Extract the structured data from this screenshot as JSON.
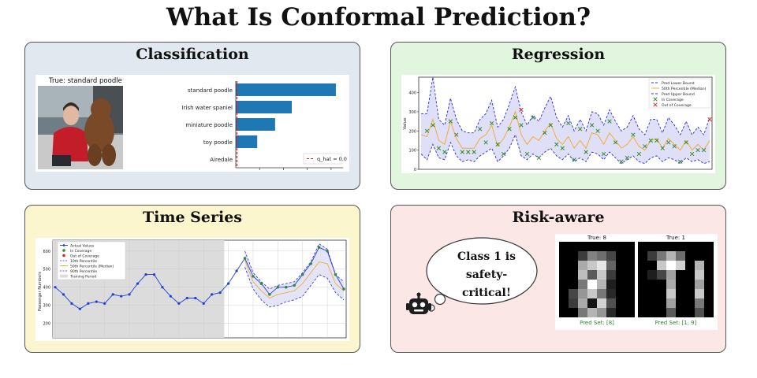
{
  "title": "What Is Conformal Prediction?",
  "panels": {
    "classification": {
      "title": "Classification",
      "photo_caption": "True: standard poodle",
      "chart_data": {
        "type": "bar",
        "orientation": "horizontal",
        "categories": [
          "standard poodle",
          "Irish water spaniel",
          "miniature poodle",
          "toy poodle",
          "Airedale"
        ],
        "values": [
          0.84,
          0.47,
          0.33,
          0.18,
          0.0
        ],
        "threshold": 0.01,
        "legend": [
          "q_hat = 0.01"
        ],
        "legend_position": "lower-right",
        "xlim": [
          0,
          0.9
        ]
      }
    },
    "regression": {
      "title": "Regression",
      "chart_data": {
        "type": "line",
        "ylabel": "Value",
        "ylim": [
          0,
          480
        ],
        "yticks": [
          0,
          100,
          200,
          300,
          400
        ],
        "x": [
          0,
          1,
          2,
          3,
          4,
          5,
          6,
          7,
          8,
          9,
          10,
          11,
          12,
          13,
          14,
          15,
          16,
          17,
          18,
          19,
          20,
          21,
          22,
          23,
          24,
          25,
          26,
          27,
          28,
          29,
          30,
          31,
          32,
          33,
          34,
          35,
          36,
          37,
          38,
          39,
          40,
          41,
          42,
          43,
          44,
          45,
          46,
          47,
          48,
          49
        ],
        "series": [
          {
            "name": "Pred Lower Bound",
            "values": [
              80,
              50,
              130,
              60,
              50,
              140,
              70,
              40,
              50,
              40,
              70,
              90,
              110,
              40,
              70,
              110,
              180,
              70,
              50,
              80,
              60,
              90,
              110,
              70,
              50,
              80,
              40,
              60,
              40,
              90,
              80,
              50,
              90,
              60,
              30,
              50,
              70,
              40,
              30,
              60,
              70,
              40,
              60,
              50,
              30,
              60,
              40,
              50,
              30,
              40
            ]
          },
          {
            "name": "50th Percentile (Median)",
            "values": [
              180,
              170,
              260,
              150,
              130,
              250,
              160,
              110,
              110,
              110,
              160,
              180,
              230,
              120,
              160,
              220,
              300,
              180,
              130,
              170,
              150,
              200,
              240,
              160,
              130,
              170,
              110,
              150,
              110,
              190,
              180,
              130,
              190,
              150,
              110,
              130,
              170,
              120,
              100,
              150,
              160,
              110,
              160,
              130,
              100,
              150,
              100,
              130,
              100,
              150
            ]
          },
          {
            "name": "Pred Upper Bound",
            "values": [
              290,
              290,
              480,
              260,
              230,
              370,
              260,
              200,
              190,
              190,
              260,
              290,
              360,
              220,
              260,
              340,
              430,
              300,
              230,
              280,
              250,
              320,
              380,
              270,
              220,
              280,
              200,
              260,
              200,
              300,
              290,
              230,
              310,
              250,
              200,
              220,
              280,
              210,
              180,
              260,
              260,
              190,
              270,
              230,
              180,
              250,
              180,
              220,
              180,
              270
            ]
          },
          {
            "name": "In Coverage",
            "values": [
              null,
              200,
              230,
              110,
              90,
              250,
              180,
              90,
              90,
              90,
              210,
              140,
              240,
              130,
              80,
              210,
              270,
              230,
              80,
              270,
              60,
              190,
              230,
              130,
              110,
              240,
              50,
              210,
              90,
              230,
              200,
              80,
              250,
              140,
              40,
              60,
              180,
              80,
              120,
              150,
              150,
              110,
              140,
              120,
              40,
              140,
              80,
              100,
              100,
              null
            ]
          },
          {
            "name": "Out of Coverage",
            "values": [
              null,
              null,
              null,
              null,
              null,
              null,
              null,
              null,
              null,
              null,
              null,
              null,
              null,
              null,
              null,
              null,
              null,
              310,
              null,
              null,
              null,
              null,
              null,
              null,
              null,
              null,
              null,
              null,
              null,
              null,
              null,
              null,
              null,
              null,
              null,
              null,
              null,
              null,
              null,
              null,
              null,
              null,
              null,
              null,
              null,
              null,
              null,
              null,
              null,
              260
            ]
          }
        ],
        "legend": [
          "Pred Lower Bound",
          "50th Percentile (Median)",
          "Pred Upper Bound",
          "In Coverage",
          "Out of Coverage"
        ],
        "legend_position": "top-right",
        "colors": {
          "bounds": "#2b2bd6",
          "median": "#f5a623",
          "in": "#2e8b2e",
          "out": "#d62728",
          "band": "#dfe0f7"
        }
      }
    },
    "timeseries": {
      "title": "Time Series",
      "chart_data": {
        "type": "line",
        "ylabel": "Passenger Numbers",
        "ylim": [
          120,
          660
        ],
        "yticks": [
          200,
          300,
          400,
          500,
          600
        ],
        "x": [
          0,
          1,
          2,
          3,
          4,
          5,
          6,
          7,
          8,
          9,
          10,
          11,
          12,
          13,
          14,
          15,
          16,
          17,
          18,
          19,
          20,
          21,
          22,
          23,
          24,
          25,
          26,
          27,
          28,
          29,
          30,
          31,
          32,
          33,
          34,
          35
        ],
        "training_period_end": 20,
        "series": [
          {
            "name": "Actual Values",
            "values": [
              400,
              360,
              310,
              280,
              310,
              320,
              310,
              360,
              350,
              360,
              420,
              470,
              470,
              400,
              350,
              310,
              340,
              340,
              310,
              360,
              370,
              420,
              490,
              560,
              460,
              420,
              360,
              400,
              400,
              410,
              470,
              530,
              620,
              600,
              470,
              390
            ]
          },
          {
            "name": "10th Percentile",
            "values": [
              null,
              null,
              null,
              null,
              null,
              null,
              null,
              null,
              null,
              null,
              null,
              null,
              null,
              null,
              null,
              null,
              null,
              null,
              null,
              null,
              null,
              null,
              null,
              510,
              390,
              330,
              290,
              300,
              320,
              330,
              350,
              410,
              470,
              450,
              370,
              330
            ]
          },
          {
            "name": "50th Percentile (Median)",
            "values": [
              null,
              null,
              null,
              null,
              null,
              null,
              null,
              null,
              null,
              null,
              null,
              null,
              null,
              null,
              null,
              null,
              null,
              null,
              null,
              null,
              null,
              null,
              null,
              550,
              430,
              380,
              340,
              360,
              370,
              380,
              420,
              480,
              540,
              530,
              420,
              380
            ]
          },
          {
            "name": "90th Percentile",
            "values": [
              null,
              null,
              null,
              null,
              null,
              null,
              null,
              null,
              null,
              null,
              null,
              null,
              null,
              null,
              null,
              null,
              null,
              null,
              null,
              null,
              null,
              null,
              null,
              600,
              480,
              430,
              390,
              410,
              420,
              430,
              480,
              540,
              640,
              610,
              470,
              430
            ]
          }
        ],
        "legend": [
          "Actual Values",
          "In Coverage",
          "Out of Coverage",
          "10th Percentile",
          "50th Percentile (Median)",
          "90th Percentile",
          "Training Period"
        ],
        "legend_position": "top-left",
        "colors": {
          "actual": "#1f3fd6",
          "pct": "#2b2bd6",
          "median": "#f5a623",
          "in": "#2e8b2e",
          "out": "#d62728",
          "train": "#dcdcdc"
        }
      }
    },
    "risk": {
      "title": "Risk-aware",
      "bubble": "Class 1 is safety-critical!",
      "digits": [
        {
          "title": "True: 8",
          "pred_set": "Pred Set: [8]"
        },
        {
          "title": "True: 1",
          "pred_set": "Pred Set: [1, 9]"
        }
      ]
    }
  }
}
